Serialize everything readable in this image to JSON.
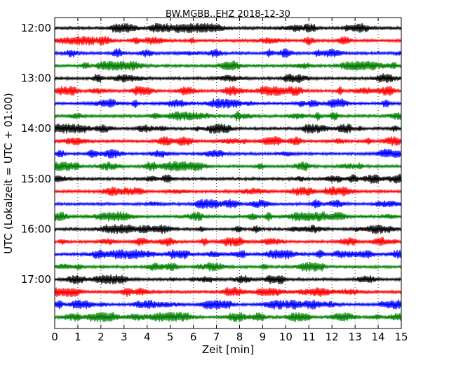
{
  "chart_data": {
    "type": "line",
    "subtype": "helicorder",
    "title": "BW.MGBB..EHZ 2018-12-30",
    "xlabel": "Zeit  [min]",
    "ylabel": "UTC (Lokalzeit = UTC + 01:00)",
    "xlim": [
      0,
      15
    ],
    "x_ticks": [
      "0",
      "1",
      "2",
      "3",
      "4",
      "5",
      "6",
      "7",
      "8",
      "9",
      "10",
      "11",
      "12",
      "13",
      "14",
      "15"
    ],
    "y_tick_labels": [
      "12:00",
      "13:00",
      "14:00",
      "15:00",
      "16:00",
      "17:00"
    ],
    "grid": {
      "x": "dotted",
      "y": false
    },
    "trace_colors": [
      "#000000",
      "#ff0000",
      "#0000ff",
      "#008000"
    ],
    "traces": [
      {
        "start": "12:00"
      },
      {
        "start": "12:15"
      },
      {
        "start": "12:30"
      },
      {
        "start": "12:45"
      },
      {
        "start": "13:00"
      },
      {
        "start": "13:15"
      },
      {
        "start": "13:30"
      },
      {
        "start": "13:45"
      },
      {
        "start": "14:00"
      },
      {
        "start": "14:15"
      },
      {
        "start": "14:30"
      },
      {
        "start": "14:45"
      },
      {
        "start": "15:00"
      },
      {
        "start": "15:15"
      },
      {
        "start": "15:30"
      },
      {
        "start": "15:45"
      },
      {
        "start": "16:00"
      },
      {
        "start": "16:15"
      },
      {
        "start": "16:30"
      },
      {
        "start": "16:45"
      },
      {
        "start": "17:00"
      },
      {
        "start": "17:15"
      },
      {
        "start": "17:30"
      },
      {
        "start": "17:45"
      }
    ]
  }
}
